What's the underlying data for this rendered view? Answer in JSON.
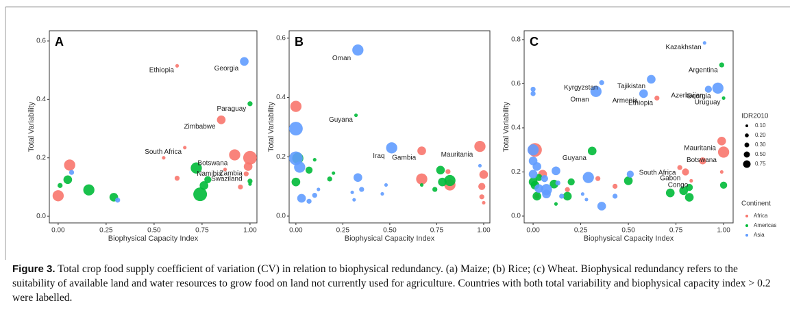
{
  "chart_data": [
    {
      "type": "scatter",
      "panel": "A",
      "xlabel": "Biophysical Capacity Index",
      "ylabel": "Total Variability",
      "xlim": [
        -0.046,
        1.036
      ],
      "ylim": [
        -0.023,
        0.635
      ],
      "xticks": [
        {
          "value": 0,
          "label": "0.00"
        },
        0.25,
        {
          "value": 0.5,
          "label": "0.50"
        },
        0.75,
        {
          "value": 1,
          "label": "1.00"
        }
      ],
      "yticks": [
        {
          "value": 0,
          "label": "0.0"
        },
        0.2,
        0.4,
        0.6
      ],
      "series": [
        {
          "color": "#F8766D",
          "x": [
            0.0,
            0.06,
            0.55,
            0.62,
            0.62,
            0.66,
            0.85,
            0.92,
            0.87,
            0.99,
            0.98,
            0.95,
            1.0
          ],
          "y": [
            0.07,
            0.175,
            0.2,
            0.515,
            0.13,
            0.235,
            0.33,
            0.21,
            0.16,
            0.17,
            0.145,
            0.1,
            0.2
          ],
          "sizes": [
            0.5,
            0.5,
            0.05,
            0.05,
            0.1,
            0.05,
            0.3,
            0.5,
            0.05,
            0.3,
            0.1,
            0.1,
            0.75
          ],
          "labels": [
            null,
            null,
            null,
            "Ethiopia",
            null,
            "South Africa",
            "Zimbabwe",
            "Botswana",
            "Namibia",
            "Zambia",
            "Swaziland",
            null,
            null
          ]
        },
        {
          "color": "#00BA38",
          "x": [
            0.01,
            0.05,
            0.16,
            0.29,
            0.72,
            0.74,
            0.76,
            0.78,
            1.0,
            1.0,
            1.0
          ],
          "y": [
            0.105,
            0.125,
            0.09,
            0.065,
            0.165,
            0.075,
            0.105,
            0.125,
            0.385,
            0.12,
            0.11
          ],
          "sizes": [
            0.1,
            0.3,
            0.5,
            0.3,
            0.5,
            0.75,
            0.3,
            0.2,
            0.1,
            0.1,
            0.05
          ],
          "labels": [
            null,
            null,
            null,
            null,
            null,
            null,
            null,
            null,
            "Paraguay",
            null,
            null
          ]
        },
        {
          "color": "#619CFF",
          "x": [
            0.07,
            0.31,
            0.97
          ],
          "y": [
            0.15,
            0.055,
            0.53
          ],
          "sizes": [
            0.1,
            0.1,
            0.3
          ],
          "labels": [
            null,
            null,
            "Georgia"
          ]
        }
      ]
    },
    {
      "type": "scatter",
      "panel": "B",
      "xlabel": "Biophysical Capacity Index",
      "ylabel": "Total Variability",
      "xlim": [
        -0.036,
        1.033
      ],
      "ylim": [
        -0.023,
        0.625
      ],
      "xticks": [
        {
          "value": 0,
          "label": "0.00"
        },
        0.25,
        {
          "value": 0.5,
          "label": "0.50"
        },
        0.75,
        {
          "value": 1,
          "label": "1.00"
        }
      ],
      "yticks": [
        {
          "value": 0,
          "label": "0.0"
        },
        0.2,
        0.4,
        0.6
      ],
      "series": [
        {
          "color": "#F8766D",
          "x": [
            0.0,
            0.67,
            0.98,
            0.67,
            0.82,
            0.81,
            1.0,
            0.99,
            0.99,
            1.0
          ],
          "y": [
            0.37,
            0.22,
            0.235,
            0.125,
            0.105,
            0.15,
            0.14,
            0.1,
            0.065,
            0.045
          ],
          "sizes": [
            0.5,
            0.3,
            0.5,
            0.5,
            0.5,
            0.1,
            0.3,
            0.2,
            0.1,
            0.05
          ],
          "labels": [
            null,
            "Gambia",
            "Mauritania",
            null,
            null,
            null,
            null,
            null,
            null,
            null
          ]
        },
        {
          "color": "#00BA38",
          "x": [
            0.0,
            0.01,
            0.07,
            0.1,
            0.18,
            0.2,
            0.32,
            0.67,
            0.74,
            0.77,
            0.78,
            0.82
          ],
          "y": [
            0.115,
            0.195,
            0.155,
            0.19,
            0.125,
            0.145,
            0.34,
            0.105,
            0.09,
            0.155,
            0.115,
            0.12
          ],
          "sizes": [
            0.3,
            0.5,
            0.2,
            0.05,
            0.1,
            0.05,
            0.05,
            0.05,
            0.1,
            0.3,
            0.3,
            0.5
          ],
          "labels": [
            null,
            null,
            null,
            null,
            null,
            null,
            "Guyana",
            null,
            null,
            null,
            null,
            null
          ]
        },
        {
          "color": "#619CFF",
          "x": [
            0.0,
            0.0,
            0.02,
            0.03,
            0.07,
            0.1,
            0.12,
            0.33,
            0.33,
            0.3,
            0.35,
            0.31,
            0.46,
            0.48,
            0.51,
            0.98
          ],
          "y": [
            0.295,
            0.195,
            0.165,
            0.06,
            0.05,
            0.07,
            0.09,
            0.56,
            0.13,
            0.08,
            0.09,
            0.055,
            0.075,
            0.105,
            0.23,
            0.17
          ],
          "sizes": [
            0.75,
            0.75,
            0.5,
            0.3,
            0.1,
            0.1,
            0.05,
            0.5,
            0.3,
            0.05,
            0.1,
            0.05,
            0.05,
            0.05,
            0.5,
            0.05
          ],
          "labels": [
            null,
            null,
            null,
            null,
            null,
            null,
            null,
            "Oman",
            null,
            null,
            null,
            null,
            null,
            null,
            "Iraq",
            null
          ]
        }
      ]
    },
    {
      "type": "scatter",
      "panel": "C",
      "xlabel": "Biophysical Capacity Index",
      "ylabel": "Total Variability",
      "xlim": [
        -0.047,
        1.05
      ],
      "ylim": [
        -0.031,
        0.84
      ],
      "xticks": [
        {
          "value": 0,
          "label": "0.00"
        },
        0.25,
        {
          "value": 0.5,
          "label": "0.50"
        },
        0.75,
        {
          "value": 1,
          "label": "1.00"
        }
      ],
      "yticks": [
        {
          "value": 0,
          "label": "0.0"
        },
        0.2,
        0.4,
        0.6,
        0.8
      ],
      "size_legend": {
        "title": "IDR2010",
        "values": [
          {
            "value": 0.1,
            "label": "0.10"
          },
          {
            "value": 0.2,
            "label": "0.20"
          },
          {
            "value": 0.3,
            "label": "0.30"
          },
          {
            "value": 0.5,
            "label": "0.50"
          },
          0.75
        ]
      },
      "legend_title": "Continent",
      "series": [
        {
          "name": "Africa",
          "color": "#F8766D",
          "x": [
            0.01,
            0.02,
            0.05,
            0.18,
            0.34,
            0.43,
            0.65,
            0.77,
            0.8,
            0.83,
            0.89,
            0.99,
            1.0,
            0.99
          ],
          "y": [
            0.3,
            0.09,
            0.19,
            0.12,
            0.17,
            0.135,
            0.535,
            0.22,
            0.2,
            0.16,
            0.25,
            0.34,
            0.29,
            0.2
          ],
          "sizes": [
            0.75,
            0.1,
            0.3,
            0.1,
            0.1,
            0.1,
            0.1,
            0.1,
            0.2,
            0.05,
            0.2,
            0.3,
            0.5,
            0.05
          ],
          "labels": [
            null,
            null,
            null,
            null,
            null,
            null,
            "Ethiopia",
            "South Africa",
            "Gabon",
            "Congo",
            null,
            "Mauritania",
            "Botswana",
            null
          ]
        },
        {
          "name": "Americas",
          "color": "#00BA38",
          "x": [
            0.0,
            0.01,
            0.02,
            0.03,
            0.11,
            0.12,
            0.18,
            0.2,
            0.31,
            0.5,
            0.72,
            0.79,
            0.82,
            0.82,
            0.99,
            1.0,
            1.0
          ],
          "y": [
            0.155,
            0.14,
            0.09,
            0.175,
            0.145,
            0.055,
            0.09,
            0.155,
            0.295,
            0.16,
            0.105,
            0.115,
            0.085,
            0.13,
            0.685,
            0.535,
            0.14
          ],
          "sizes": [
            0.3,
            0.3,
            0.3,
            0.2,
            0.3,
            0.05,
            0.3,
            0.2,
            0.3,
            0.3,
            0.3,
            0.3,
            0.3,
            0.2,
            0.1,
            0.05,
            0.2
          ],
          "labels": [
            null,
            null,
            null,
            null,
            null,
            null,
            null,
            null,
            "Guyana",
            null,
            null,
            null,
            null,
            null,
            "Argentina",
            "Uruguay",
            null
          ]
        },
        {
          "name": "Asia",
          "color": "#619CFF",
          "x": [
            0.0,
            0.0,
            0.0,
            0.0,
            0.0,
            0.02,
            0.03,
            0.06,
            0.07,
            0.07,
            0.12,
            0.13,
            0.15,
            0.26,
            0.28,
            0.29,
            0.33,
            0.36,
            0.36,
            0.43,
            0.51,
            0.58,
            0.62,
            0.9,
            0.92,
            0.97
          ],
          "y": [
            0.575,
            0.555,
            0.3,
            0.25,
            0.19,
            0.225,
            0.125,
            0.17,
            0.12,
            0.1,
            0.205,
            0.15,
            0.09,
            0.1,
            0.075,
            0.175,
            0.565,
            0.605,
            0.045,
            0.09,
            0.19,
            0.555,
            0.62,
            0.785,
            0.575,
            0.58
          ],
          "sizes": [
            0.1,
            0.1,
            0.5,
            0.3,
            0.3,
            0.3,
            0.3,
            0.2,
            0.5,
            0.3,
            0.3,
            0.1,
            0.1,
            0.05,
            0.05,
            0.5,
            0.5,
            0.1,
            0.3,
            0.1,
            0.2,
            0.3,
            0.3,
            0.05,
            0.2,
            0.5
          ],
          "labels": [
            null,
            null,
            null,
            null,
            null,
            null,
            null,
            null,
            null,
            null,
            null,
            null,
            null,
            null,
            null,
            null,
            "Oman",
            "Kyrgyzstan",
            null,
            null,
            null,
            "Armenia",
            "Tajikistan",
            "Kazakhstan",
            "Azerbaijan",
            "Georgia"
          ]
        }
      ]
    }
  ],
  "caption": {
    "label": "Figure 3.",
    "text": "Total crop food supply coefficient of variation (CV) in relation to biophysical redundancy. (a) Maize; (b) Rice; (c) Wheat. Biophysical redundancy refers to the suitability of available land and water resources to grow food on land not currently used for agriculture. Countries with both total variability and biophysical capacity index > 0.2 were labelled."
  }
}
